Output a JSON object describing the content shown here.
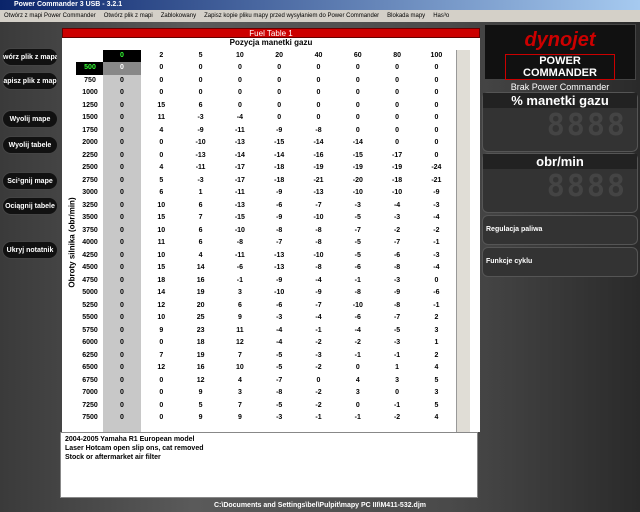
{
  "window": {
    "title": "Power Commander 3 USB - 3.2.1",
    "menu": [
      "Otwórz z mapi Power Commander",
      "Otwórz plik z mapi",
      "Zablokowany",
      "Zapisz kopie pliku mapy przed wysyłaniem do Power Commander",
      "Blokada mapy",
      "Has³o"
    ]
  },
  "buttons": [
    "wórz plik z mapa",
    "apisz plik z map",
    "Wyolij mape",
    "Wyolij tabele",
    "Sci¹gnij mape",
    "Ociągnij tabele",
    "Ukryj notatnik"
  ],
  "table": {
    "title": "Fuel Table 1",
    "column_axis": "Pozycja manetki gazu",
    "row_axis": "Obroty silnika (obr/min)",
    "columns": [
      0,
      2,
      5,
      10,
      20,
      40,
      60,
      80,
      100
    ],
    "rows": [
      {
        "rpm": 500,
        "values": [
          0,
          0,
          0,
          0,
          0,
          0,
          0,
          0,
          0
        ]
      },
      {
        "rpm": 750,
        "values": [
          0,
          0,
          0,
          0,
          0,
          0,
          0,
          0,
          0
        ]
      },
      {
        "rpm": 1000,
        "values": [
          0,
          0,
          0,
          0,
          0,
          0,
          0,
          0,
          0
        ]
      },
      {
        "rpm": 1250,
        "values": [
          0,
          15,
          6,
          0,
          0,
          0,
          0,
          0,
          0
        ]
      },
      {
        "rpm": 1500,
        "values": [
          0,
          11,
          -3,
          -4,
          0,
          0,
          0,
          0,
          0
        ]
      },
      {
        "rpm": 1750,
        "values": [
          0,
          4,
          -9,
          -11,
          -9,
          -8,
          0,
          0,
          0
        ]
      },
      {
        "rpm": 2000,
        "values": [
          0,
          0,
          -10,
          -13,
          -15,
          -14,
          -14,
          0,
          0
        ]
      },
      {
        "rpm": 2250,
        "values": [
          0,
          0,
          -13,
          -14,
          -14,
          -16,
          -15,
          -17,
          0
        ]
      },
      {
        "rpm": 2500,
        "values": [
          0,
          4,
          -11,
          -17,
          -18,
          -19,
          -19,
          -19,
          -24
        ]
      },
      {
        "rpm": 2750,
        "values": [
          0,
          5,
          -3,
          -17,
          -18,
          -21,
          -20,
          -18,
          -21
        ]
      },
      {
        "rpm": 3000,
        "values": [
          0,
          6,
          1,
          -11,
          -9,
          -13,
          -10,
          -10,
          -9
        ]
      },
      {
        "rpm": 3250,
        "values": [
          0,
          10,
          6,
          -13,
          -6,
          -7,
          -3,
          -4,
          -3
        ]
      },
      {
        "rpm": 3500,
        "values": [
          0,
          15,
          7,
          -15,
          -9,
          -10,
          -5,
          -3,
          -4
        ]
      },
      {
        "rpm": 3750,
        "values": [
          0,
          10,
          6,
          -10,
          -8,
          -8,
          -7,
          -2,
          -2
        ]
      },
      {
        "rpm": 4000,
        "values": [
          0,
          11,
          6,
          -8,
          -7,
          -8,
          -5,
          -7,
          -1
        ]
      },
      {
        "rpm": 4250,
        "values": [
          0,
          10,
          4,
          -11,
          -13,
          -10,
          -5,
          -6,
          -3
        ]
      },
      {
        "rpm": 4500,
        "values": [
          0,
          15,
          14,
          -6,
          -13,
          -8,
          -6,
          -8,
          -4
        ]
      },
      {
        "rpm": 4750,
        "values": [
          0,
          18,
          16,
          -1,
          -9,
          -4,
          -1,
          -3,
          0
        ]
      },
      {
        "rpm": 5000,
        "values": [
          0,
          14,
          19,
          3,
          -10,
          -9,
          -8,
          -9,
          -6
        ]
      },
      {
        "rpm": 5250,
        "values": [
          0,
          12,
          20,
          6,
          -6,
          -7,
          -10,
          -8,
          -1
        ]
      },
      {
        "rpm": 5500,
        "values": [
          0,
          10,
          25,
          9,
          -3,
          -4,
          -6,
          -7,
          2
        ]
      },
      {
        "rpm": 5750,
        "values": [
          0,
          9,
          23,
          11,
          -4,
          -1,
          -4,
          -5,
          3
        ]
      },
      {
        "rpm": 6000,
        "values": [
          0,
          0,
          18,
          12,
          -4,
          -2,
          -2,
          -3,
          1
        ]
      },
      {
        "rpm": 6250,
        "values": [
          0,
          7,
          19,
          7,
          -5,
          -3,
          -1,
          -1,
          2
        ]
      },
      {
        "rpm": 6500,
        "values": [
          0,
          12,
          16,
          10,
          -5,
          -2,
          0,
          1,
          4
        ]
      },
      {
        "rpm": 6750,
        "values": [
          0,
          0,
          12,
          4,
          -7,
          0,
          4,
          3,
          5
        ]
      },
      {
        "rpm": 7000,
        "values": [
          0,
          0,
          9,
          3,
          -8,
          -2,
          3,
          0,
          3
        ]
      },
      {
        "rpm": 7250,
        "values": [
          0,
          0,
          5,
          7,
          -5,
          -2,
          0,
          -1,
          5
        ]
      },
      {
        "rpm": 7500,
        "values": [
          0,
          0,
          9,
          9,
          -3,
          -1,
          -1,
          -2,
          4
        ]
      }
    ]
  },
  "side": {
    "brand": "dynojet",
    "product": "POWER COMMANDER",
    "status": "Brak Power Commander",
    "gauge1": "% manetki gazu",
    "gauge2": "obr/min",
    "label1": "Regulacja paliwa",
    "label2": "Funkcje cyklu"
  },
  "notes": [
    "2004-2005 Yamaha R1 European model",
    "Laser Hotcam open slip ons, cat removed",
    "Stock or aftermarket air filter"
  ],
  "status_bar": "C:\\Documents and Settings\\bel\\Pulpit\\mapy PC III\\M411-532.djm"
}
